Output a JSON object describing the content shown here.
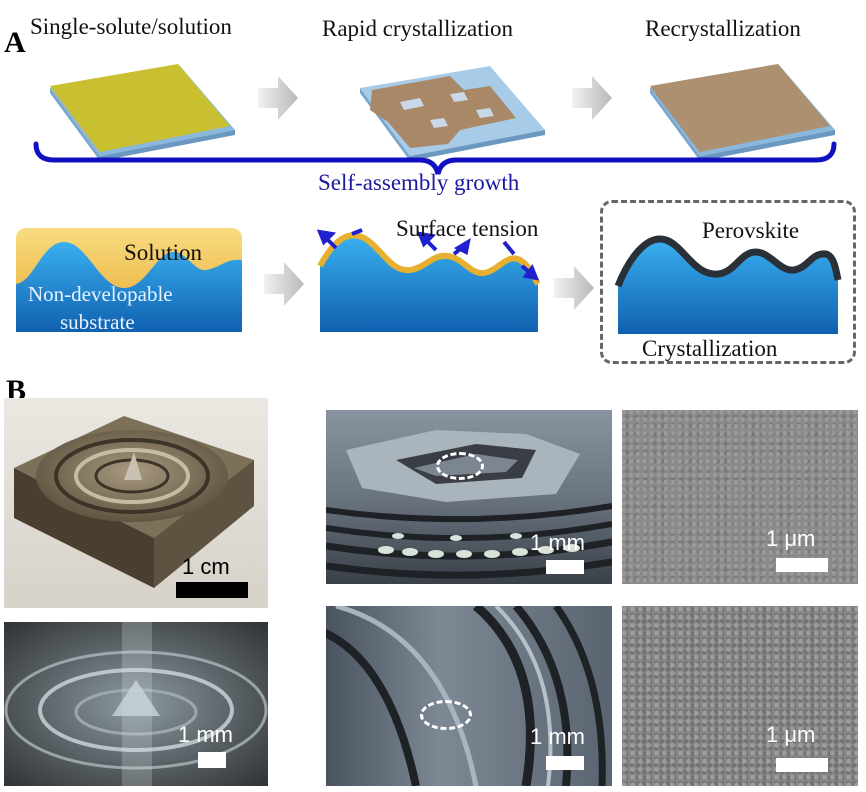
{
  "panel_a": {
    "letter": "A",
    "steps": [
      "Single-solute/solution",
      "Rapid crystallization",
      "Recrystallization"
    ],
    "brace_label": "Self-assembly growth",
    "solution_label": "Solution",
    "substrate_label_line1": "Non-developable",
    "substrate_label_line2": "substrate",
    "surface_tension_label": "Surface tension",
    "perovskite_label": "Perovskite",
    "crystallization_label": "Crystallization"
  },
  "panel_b": {
    "letter": "B",
    "scale_1cm": "1 cm",
    "scale_1mm_a": "1 mm",
    "scale_1mm_b": "1 mm",
    "scale_1mm_c": "1 mm",
    "scale_1um_a": "1 μm",
    "scale_1um_b": "1 μm"
  },
  "colors": {
    "brace_blue": "#1010c0",
    "substrate_blue": "#1a82d6",
    "solution_yellow": "#f0c050",
    "perovskite_dark": "#2a3038",
    "film_brown": "#b09070",
    "sem_gray": "#8a8a8a"
  }
}
